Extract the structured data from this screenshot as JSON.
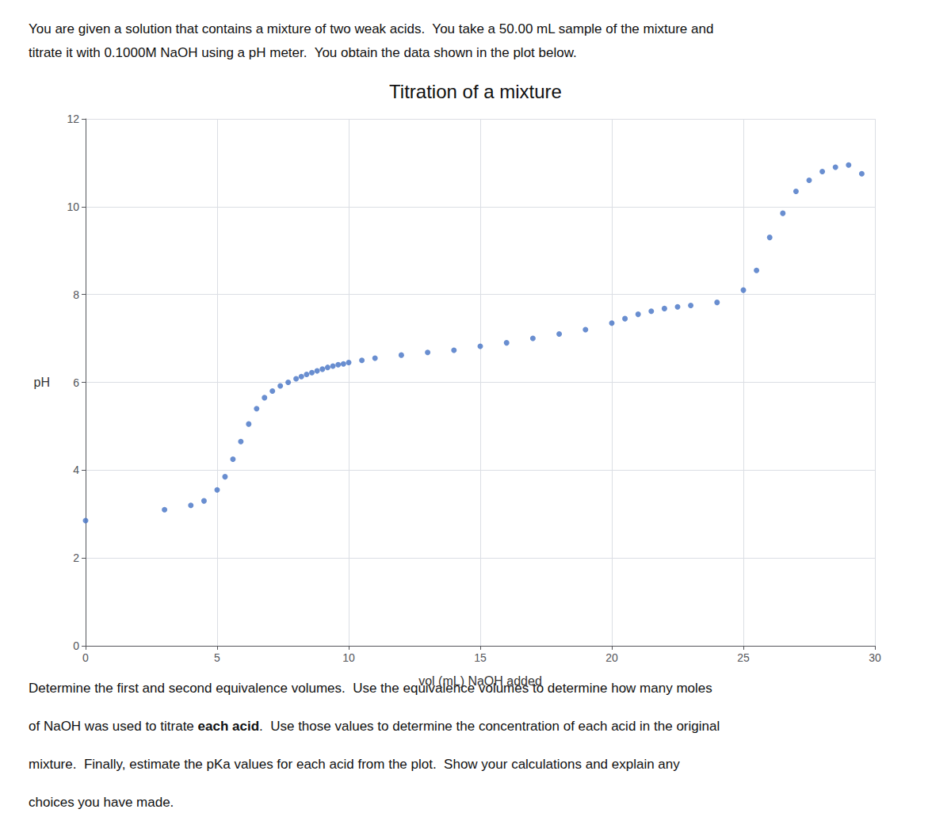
{
  "chart_data": {
    "type": "scatter",
    "title": "Titration of a mixture",
    "subtitle": [
      "You are given a solution that contains a mixture of two weak acids.  You take a 50.00 mL sample of the mixture and",
      "titrate it with 0.1000M NaOH using a pH meter.  You obtain the data shown in the plot below."
    ],
    "annotations": [
      "Determine the first and second equivalence volumes.  Use the equivalence volumes to determine how many moles",
      [
        "of NaOH was used to titrate ",
        {
          "text": "each acid",
          "bold": true
        },
        ".  Use those values to determine the concentration of each acid in the original"
      ],
      "mixture.  Finally, estimate the pKa values for each acid from the plot.  Show your calculations and explain any",
      "choices you have made."
    ],
    "xlabel": "vol (mL) NaOH added",
    "ylabel": "pH",
    "x": [
      0.0,
      3.0,
      4.0,
      4.5,
      5.0,
      5.3,
      5.6,
      5.9,
      6.2,
      6.5,
      6.8,
      7.1,
      7.4,
      7.7,
      8.0,
      8.2,
      8.4,
      8.6,
      8.8,
      9.0,
      9.2,
      9.4,
      9.6,
      9.8,
      10.0,
      10.5,
      11.0,
      12.0,
      13.0,
      14.0,
      15.0,
      16.0,
      17.0,
      18.0,
      19.0,
      20.0,
      20.5,
      21.0,
      21.5,
      22.0,
      22.5,
      23.0,
      24.0,
      25.0,
      25.5,
      26.0,
      26.5,
      27.0,
      27.5,
      28.0,
      28.5,
      29.0,
      29.5
    ],
    "values": [
      2.85,
      3.1,
      3.2,
      3.3,
      3.55,
      3.85,
      4.25,
      4.65,
      5.05,
      5.4,
      5.65,
      5.8,
      5.92,
      6.0,
      6.08,
      6.13,
      6.18,
      6.22,
      6.26,
      6.3,
      6.34,
      6.37,
      6.4,
      6.42,
      6.45,
      6.5,
      6.55,
      6.62,
      6.68,
      6.73,
      6.82,
      6.9,
      7.0,
      7.1,
      7.2,
      7.35,
      7.45,
      7.55,
      7.62,
      7.68,
      7.72,
      7.75,
      7.82,
      8.1,
      8.55,
      9.3,
      9.85,
      10.35,
      10.6,
      10.8,
      10.9,
      10.95,
      10.75
    ],
    "color": "#4472C4",
    "xlim": [
      0,
      30
    ],
    "ylim": [
      0,
      12
    ],
    "xticks": [
      0,
      5,
      10,
      15,
      20,
      25,
      30
    ],
    "yticks": [
      0,
      2,
      4,
      6,
      8,
      10,
      12
    ],
    "grid": true
  }
}
